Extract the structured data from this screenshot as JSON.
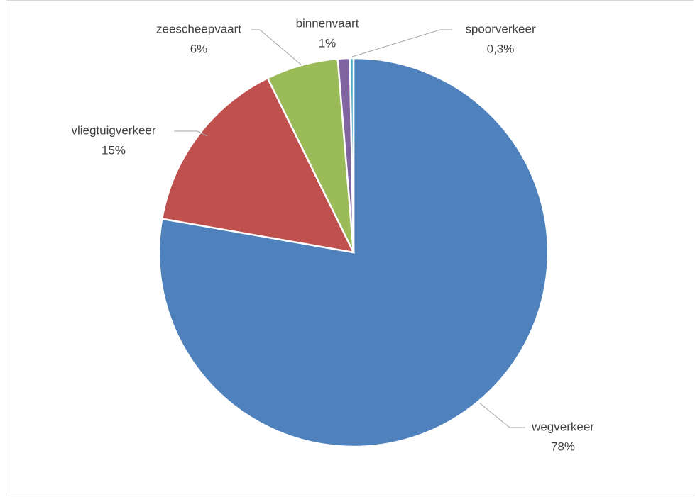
{
  "chart_data": {
    "type": "pie",
    "categories": [
      "wegverkeer",
      "vliegtuigverkeer",
      "zeescheepvaart",
      "binnenvaart",
      "spoorverkeer"
    ],
    "values": [
      78,
      15,
      6,
      1,
      0.3
    ],
    "value_labels": [
      "78%",
      "15%",
      "6%",
      "1%",
      "0,3%"
    ],
    "colors": [
      "#4f81bd",
      "#c0504d",
      "#9bbb59",
      "#8064a2",
      "#4bacc6"
    ]
  }
}
